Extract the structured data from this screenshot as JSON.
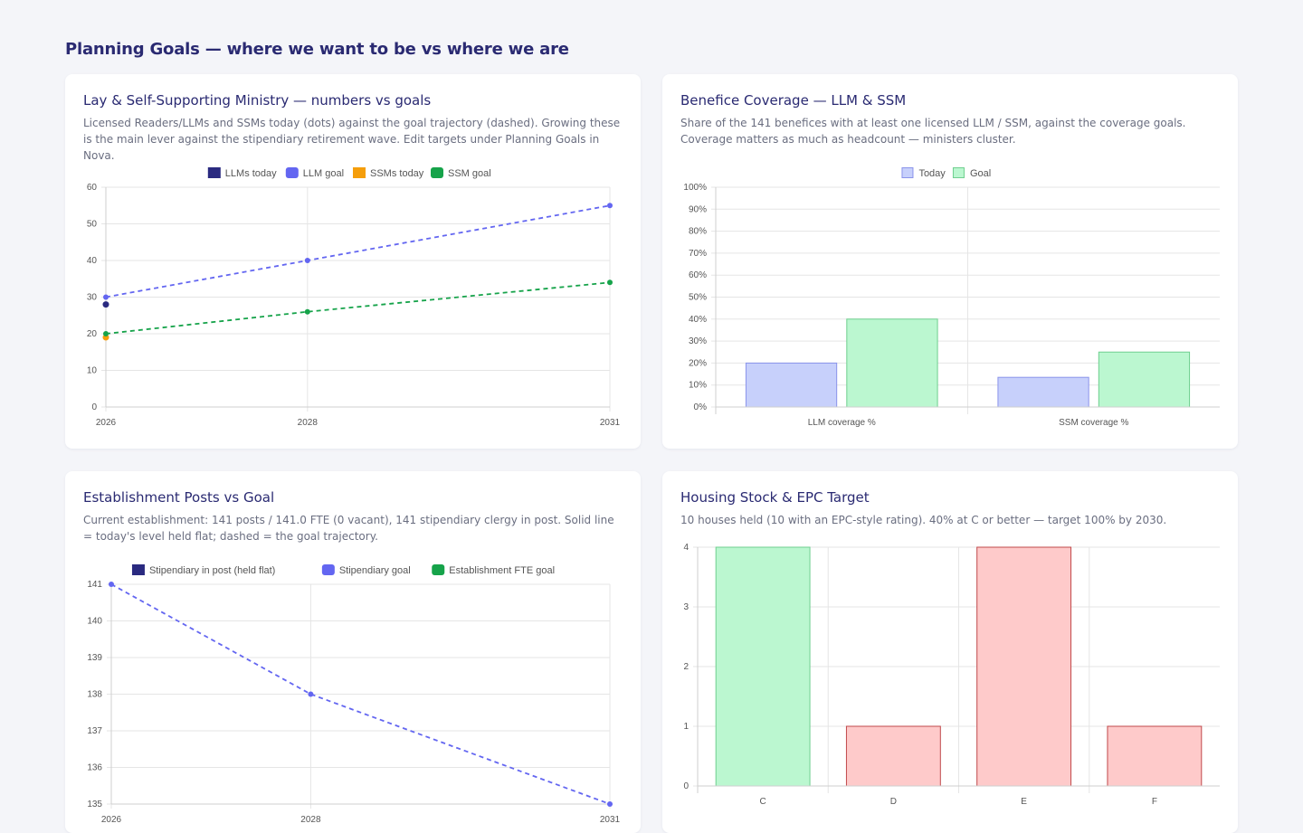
{
  "page": {
    "title": "Planning Goals — where we want to be vs where we are"
  },
  "cards": [
    {
      "title": "Lay & Self-Supporting Ministry — numbers vs goals",
      "description": "Licensed Readers/LLMs and SSMs today (dots) against the goal trajectory (dashed). Growing these is the main lever against the stipendiary retirement wave. Edit targets under Planning Goals in Nova."
    },
    {
      "title": "Benefice Coverage — LLM & SSM",
      "description": "Share of the 141 benefices with at least one licensed LLM / SSM, against the coverage goals. Coverage matters as much as headcount — ministers cluster."
    },
    {
      "title": "Establishment Posts vs Goal",
      "description": "Current establishment: 141 posts / 141.0 FTE (0 vacant), 141 stipendiary clergy in post. Solid line = today's level held flat; dashed = the goal trajectory."
    },
    {
      "title": "Housing Stock & EPC Target",
      "description": "10 houses held (10 with an EPC-style rating). 40% at C or better — target 100% by 2030."
    }
  ],
  "colors": {
    "navy": "#2a2a80",
    "indigo": "#6366f1",
    "orange": "#f59e0b",
    "green": "#16a34a",
    "today_fill": "#c7d0fb",
    "today_border": "#8a93ea",
    "goal_fill": "#bbf7d0",
    "goal_border": "#6fcf8f",
    "red_fill": "#fecaca",
    "red_border": "#c0494b"
  },
  "chart_data": [
    {
      "type": "line",
      "x": [
        2026,
        2028,
        2031
      ],
      "ylim": [
        0,
        60
      ],
      "yticks": [
        0,
        10,
        20,
        30,
        40,
        50,
        60
      ],
      "legend_position": "top",
      "series": [
        {
          "name": "LLMs today",
          "style": "point",
          "color": "#2a2a80",
          "points": [
            [
              2026,
              28
            ]
          ]
        },
        {
          "name": "LLM goal",
          "style": "dashed",
          "color": "#6366f1",
          "points": [
            [
              2026,
              30
            ],
            [
              2028,
              40
            ],
            [
              2031,
              55
            ]
          ]
        },
        {
          "name": "SSMs today",
          "style": "point",
          "color": "#f59e0b",
          "points": [
            [
              2026,
              19
            ]
          ]
        },
        {
          "name": "SSM goal",
          "style": "dashed",
          "color": "#16a34a",
          "points": [
            [
              2026,
              20
            ],
            [
              2028,
              26
            ],
            [
              2031,
              34
            ]
          ]
        }
      ]
    },
    {
      "type": "bar",
      "categories": [
        "LLM coverage %",
        "SSM coverage %"
      ],
      "ylim": [
        0,
        100
      ],
      "yticks": [
        "0%",
        "10%",
        "20%",
        "30%",
        "40%",
        "50%",
        "60%",
        "70%",
        "80%",
        "90%",
        "100%"
      ],
      "legend_position": "top",
      "series": [
        {
          "name": "Today",
          "values": [
            20,
            13.5
          ]
        },
        {
          "name": "Goal",
          "values": [
            40,
            25
          ]
        }
      ]
    },
    {
      "type": "line",
      "x": [
        2026,
        2028,
        2031
      ],
      "ylim": [
        135,
        141
      ],
      "yticks": [
        135,
        136,
        137,
        138,
        139,
        140,
        141
      ],
      "legend_position": "top",
      "series": [
        {
          "name": "Stipendiary in post (held flat)",
          "style": "solid",
          "color": "#2a2a80",
          "points": []
        },
        {
          "name": "Stipendiary goal",
          "style": "dashed",
          "color": "#6366f1",
          "points": [
            [
              2026,
              141
            ],
            [
              2028,
              138
            ],
            [
              2031,
              135
            ]
          ]
        },
        {
          "name": "Establishment FTE goal",
          "style": "dashed",
          "color": "#16a34a",
          "points": []
        }
      ]
    },
    {
      "type": "bar",
      "categories": [
        "C",
        "D",
        "E",
        "F"
      ],
      "values": [
        4,
        1,
        4,
        1
      ],
      "bar_status": [
        "good",
        "bad",
        "bad",
        "bad"
      ],
      "ylim": [
        0,
        4
      ],
      "yticks": [
        0,
        1,
        2,
        3,
        4
      ]
    }
  ]
}
